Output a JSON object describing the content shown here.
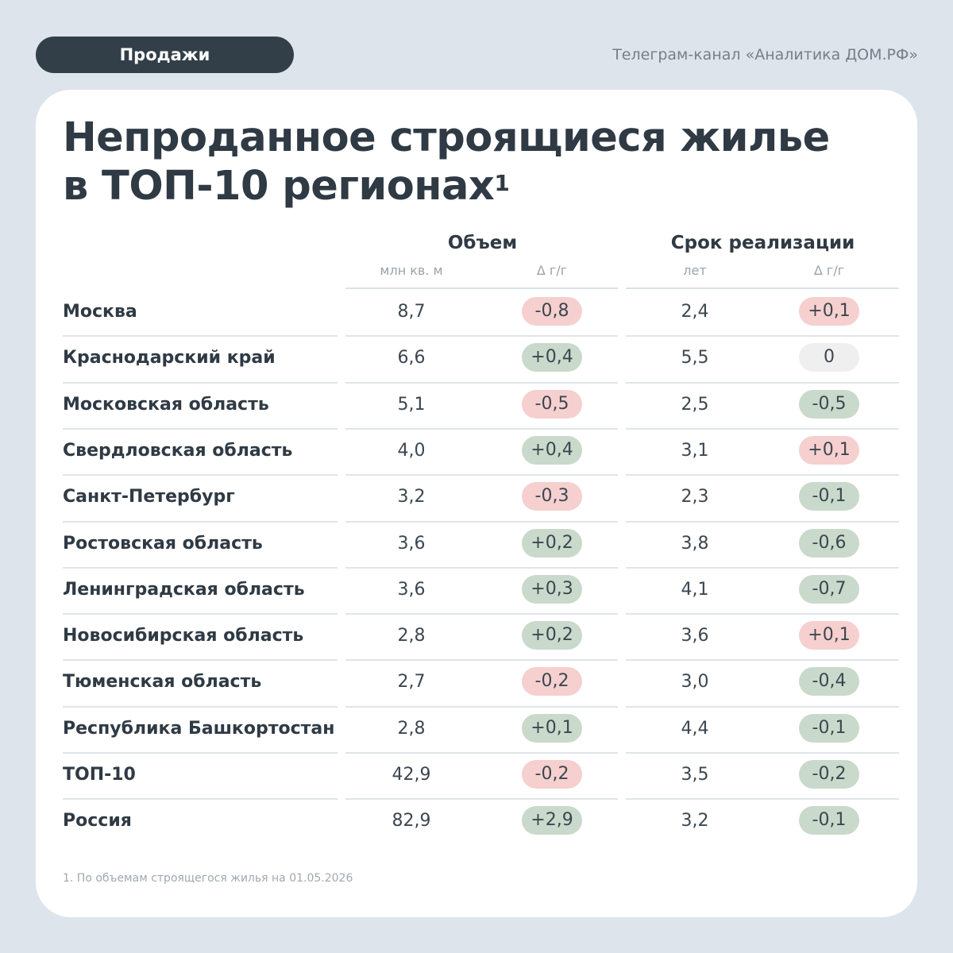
{
  "header": {
    "pill_label": "Продажи",
    "channel": "Телеграм-канал «Аналитика ДОМ.РФ»"
  },
  "title": {
    "line1": "Непроданное строящиеся жилье",
    "line2": "в ТОП-10 регионах",
    "footnote_mark": "1"
  },
  "columns": {
    "volume": {
      "title": "Объем",
      "unit": "млн кв. м",
      "delta": "Δ г/г"
    },
    "term": {
      "title": "Срок реализации",
      "unit": "лет",
      "delta": "Δ г/г"
    }
  },
  "rows": [
    {
      "region": "Москва",
      "volume": "8,7",
      "volume_delta": "-0,8",
      "volume_delta_color": "red",
      "term": "2,4",
      "term_delta": "+0,1",
      "term_delta_color": "red"
    },
    {
      "region": "Краснодарский край",
      "volume": "6,6",
      "volume_delta": "+0,4",
      "volume_delta_color": "green",
      "term": "5,5",
      "term_delta": "0",
      "term_delta_color": "neutral"
    },
    {
      "region": "Московская область",
      "volume": "5,1",
      "volume_delta": "-0,5",
      "volume_delta_color": "red",
      "term": "2,5",
      "term_delta": "-0,5",
      "term_delta_color": "green"
    },
    {
      "region": "Свердловская область",
      "volume": "4,0",
      "volume_delta": "+0,4",
      "volume_delta_color": "green",
      "term": "3,1",
      "term_delta": "+0,1",
      "term_delta_color": "red"
    },
    {
      "region": "Санкт-Петербург",
      "volume": "3,2",
      "volume_delta": "-0,3",
      "volume_delta_color": "red",
      "term": "2,3",
      "term_delta": "-0,1",
      "term_delta_color": "green"
    },
    {
      "region": "Ростовская область",
      "volume": "3,6",
      "volume_delta": "+0,2",
      "volume_delta_color": "green",
      "term": "3,8",
      "term_delta": "-0,6",
      "term_delta_color": "green"
    },
    {
      "region": "Ленинградская область",
      "volume": "3,6",
      "volume_delta": "+0,3",
      "volume_delta_color": "green",
      "term": "4,1",
      "term_delta": "-0,7",
      "term_delta_color": "green"
    },
    {
      "region": "Новосибирская область",
      "volume": "2,8",
      "volume_delta": "+0,2",
      "volume_delta_color": "green",
      "term": "3,6",
      "term_delta": "+0,1",
      "term_delta_color": "red"
    },
    {
      "region": "Тюменская область",
      "volume": "2,7",
      "volume_delta": "-0,2",
      "volume_delta_color": "red",
      "term": "3,0",
      "term_delta": "-0,4",
      "term_delta_color": "green"
    },
    {
      "region": "Республика Башкортостан",
      "volume": "2,8",
      "volume_delta": "+0,1",
      "volume_delta_color": "green",
      "term": "4,4",
      "term_delta": "-0,1",
      "term_delta_color": "green"
    },
    {
      "region": "ТОП-10",
      "volume": "42,9",
      "volume_delta": "-0,2",
      "volume_delta_color": "red",
      "term": "3,5",
      "term_delta": "-0,2",
      "term_delta_color": "green"
    },
    {
      "region": "Россия",
      "volume": "82,9",
      "volume_delta": "+2,9",
      "volume_delta_color": "green",
      "term": "3,2",
      "term_delta": "-0,1",
      "term_delta_color": "green"
    }
  ],
  "colors": {
    "red_badge": "#f6cfcf",
    "green_badge": "#c9d9cb",
    "neutral_badge": "#efefef",
    "pill_bg": "#333f48"
  },
  "footnote": "1. По объемам строящегося жилья на 01.05.2026"
}
